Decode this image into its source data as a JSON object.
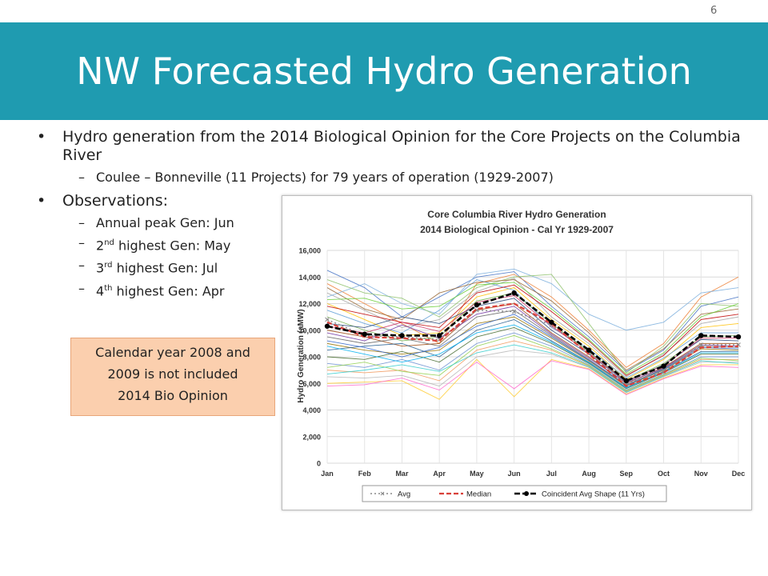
{
  "slide": {
    "number": "6",
    "title": "NW Forecasted Hydro Generation"
  },
  "bullets": {
    "b1": "Hydro generation from the 2014 Biological Opinion for the Core Projects on the Columbia River",
    "b1_sub": "Coulee – Bonneville (11 Projects) for 79 years of operation (1929-2007)",
    "b2": "Observations:",
    "obs": [
      {
        "pre": "Annual peak Gen: Jun",
        "sup": "",
        "post": ""
      },
      {
        "pre": "2",
        "sup": "nd",
        "post": " highest Gen: May"
      },
      {
        "pre": "3",
        "sup": "rd",
        "post": " highest Gen: Jul"
      },
      {
        "pre": "4",
        "sup": "th",
        "post": " highest Gen: Apr"
      }
    ]
  },
  "note": {
    "line1": "Calendar year 2008 and",
    "line2": "2009 is not included",
    "line3": "2014 Bio Opinion"
  },
  "colors": {
    "accent": "#1f9bb0",
    "note_bg": "#fbcfae",
    "avg": "#8a8a8a",
    "median": "#d9413a",
    "coincident": "#000000"
  },
  "chart_data": {
    "type": "line",
    "title": "Core Columbia River Hydro Generation",
    "subtitle": "2014 Biological Opinion - Cal Yr 1929-2007",
    "ylabel": "Hydro Generation (aMW)",
    "xlabel": "",
    "categories": [
      "Jan",
      "Feb",
      "Mar",
      "Apr",
      "May",
      "Jun",
      "Jul",
      "Aug",
      "Sep",
      "Oct",
      "Nov",
      "Dec"
    ],
    "ylim": [
      0,
      16000
    ],
    "yticks": [
      0,
      2000,
      4000,
      6000,
      8000,
      10000,
      12000,
      14000,
      16000
    ],
    "ytick_labels": [
      "0",
      "2,000",
      "4,000",
      "6,000",
      "8,000",
      "10,000",
      "12,000",
      "14,000",
      "16,000"
    ],
    "grid": true,
    "legend_position": "bottom",
    "series": [
      {
        "name": "Avg",
        "values": [
          10800,
          9600,
          9500,
          9300,
          11500,
          11400,
          10400,
          8300,
          6000,
          6900,
          8900,
          8900
        ]
      },
      {
        "name": "Median",
        "values": [
          10600,
          9500,
          9400,
          9200,
          11600,
          12000,
          10500,
          8200,
          5800,
          6800,
          8700,
          8800
        ]
      },
      {
        "name": "Coincident Avg Shape (11 Yrs)",
        "values": [
          10300,
          9700,
          9600,
          9600,
          11900,
          12800,
          10600,
          8500,
          6200,
          7300,
          9600,
          9500
        ]
      }
    ],
    "background_years": [
      [
        14500,
        13200,
        11000,
        12500,
        14000,
        14400,
        11800,
        9500,
        6900,
        8500,
        11800,
        12500
      ],
      [
        13500,
        12000,
        10500,
        9000,
        13500,
        14200,
        12500,
        10000,
        7200,
        9000,
        12500,
        14000
      ],
      [
        12800,
        11500,
        10200,
        10800,
        12900,
        13900,
        11000,
        9000,
        6500,
        8200,
        10500,
        11000
      ],
      [
        12000,
        10800,
        9600,
        9800,
        12500,
        13200,
        10800,
        8800,
        6300,
        7800,
        10200,
        10500
      ],
      [
        11500,
        10500,
        9800,
        11500,
        13800,
        13000,
        10200,
        8600,
        6400,
        7900,
        9800,
        9800
      ],
      [
        11000,
        10000,
        9200,
        9500,
        12200,
        12800,
        10500,
        8400,
        6200,
        7500,
        9500,
        9600
      ],
      [
        10500,
        10200,
        11000,
        10500,
        11800,
        12400,
        10000,
        8200,
        6100,
        7400,
        9300,
        9200
      ],
      [
        10000,
        9500,
        8800,
        9000,
        11500,
        12000,
        9800,
        8000,
        6000,
        7200,
        9000,
        9000
      ],
      [
        9500,
        9000,
        9400,
        8800,
        11000,
        11500,
        9600,
        7800,
        5900,
        7100,
        8800,
        8700
      ],
      [
        9000,
        8500,
        8200,
        8500,
        10500,
        11000,
        9400,
        7700,
        5800,
        7000,
        8600,
        8500
      ],
      [
        8500,
        8800,
        9000,
        8000,
        10000,
        10800,
        9200,
        7600,
        5700,
        6900,
        8400,
        8400
      ],
      [
        8000,
        7800,
        8400,
        7600,
        9500,
        10200,
        9000,
        7500,
        5600,
        6800,
        8200,
        8200
      ],
      [
        7500,
        7200,
        7800,
        7000,
        9000,
        9800,
        8800,
        7400,
        5500,
        6700,
        8000,
        8000
      ],
      [
        7000,
        6800,
        7000,
        6200,
        8500,
        9200,
        8500,
        7300,
        5400,
        6600,
        7800,
        7800
      ],
      [
        6500,
        6400,
        6600,
        5800,
        8000,
        8500,
        8200,
        7200,
        5300,
        6500,
        7600,
        7600
      ],
      [
        6000,
        6100,
        6200,
        4800,
        7800,
        5000,
        7800,
        7100,
        5200,
        6400,
        7400,
        7400
      ],
      [
        12500,
        13500,
        12000,
        11200,
        14200,
        14600,
        13500,
        11200,
        10000,
        10600,
        12800,
        13200
      ],
      [
        13800,
        12800,
        12400,
        11000,
        13200,
        14000,
        14200,
        10500,
        6800,
        8800,
        12000,
        11800
      ],
      [
        11800,
        11200,
        10600,
        10200,
        12800,
        13400,
        11400,
        9200,
        6600,
        8100,
        10800,
        11200
      ],
      [
        9800,
        9200,
        10400,
        9400,
        11200,
        11800,
        9700,
        7900,
        6050,
        7150,
        8900,
        8800
      ],
      [
        8800,
        8200,
        7600,
        8200,
        9800,
        10400,
        9100,
        7550,
        5650,
        6850,
        8300,
        8300
      ],
      [
        7200,
        7600,
        6900,
        6600,
        8800,
        9600,
        8600,
        7350,
        5450,
        6650,
        7900,
        7700
      ],
      [
        5800,
        5900,
        6400,
        5500,
        7600,
        5600,
        7700,
        7050,
        5150,
        6350,
        7300,
        7200
      ],
      [
        13200,
        11600,
        10800,
        12800,
        13600,
        13800,
        12200,
        9800,
        7000,
        8600,
        11200,
        11600
      ],
      [
        6700,
        7000,
        7400,
        6900,
        8300,
        8900,
        8300,
        7250,
        5350,
        6550,
        7700,
        7500
      ],
      [
        10300,
        9800,
        10600,
        9900,
        12100,
        12600,
        10300,
        8300,
        6150,
        7350,
        9400,
        9400
      ],
      [
        12300,
        12400,
        11600,
        11800,
        13400,
        13600,
        11600,
        9300,
        6700,
        8300,
        11000,
        12000
      ],
      [
        9200,
        8700,
        8000,
        8700,
        10300,
        11200,
        9500,
        7750,
        5850,
        7050,
        8700,
        8600
      ]
    ]
  }
}
